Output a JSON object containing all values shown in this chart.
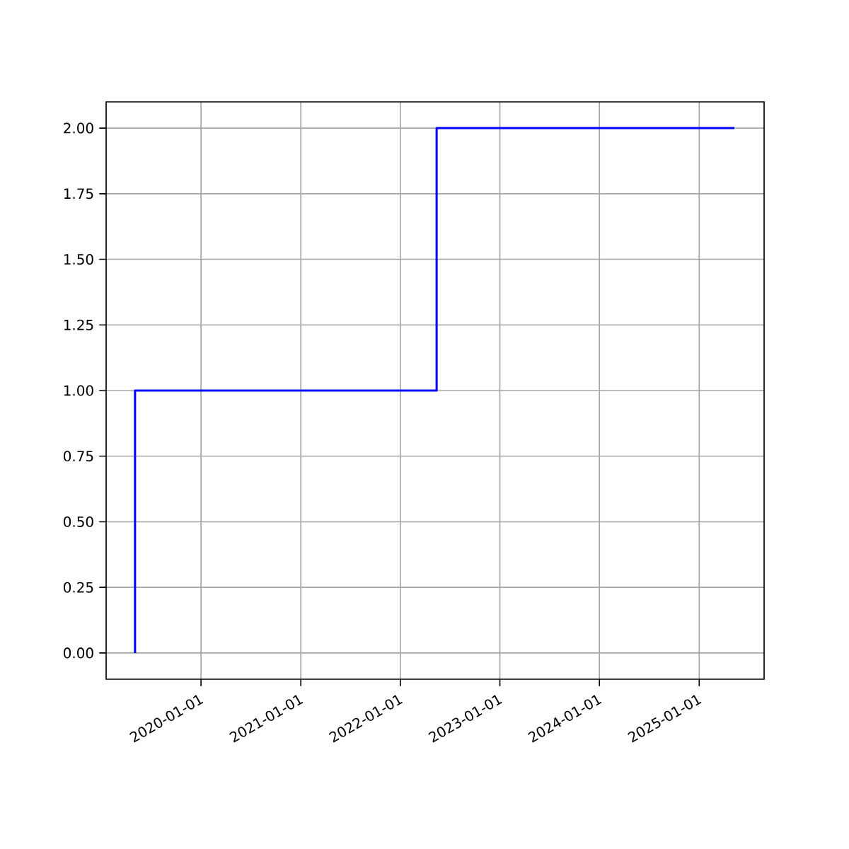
{
  "chart_data": {
    "type": "step",
    "x": [
      "2019-05-04",
      "2019-05-04",
      "2022-05-14",
      "2025-05-10"
    ],
    "series": [
      {
        "color": "#0000ff",
        "values": [
          0,
          1,
          2,
          2
        ]
      }
    ],
    "xlim": [
      "2019-01-18",
      "2025-08-27"
    ],
    "xticks": [
      "2020-01-01",
      "2021-01-01",
      "2022-01-01",
      "2023-01-01",
      "2024-01-01",
      "2025-01-01"
    ],
    "ylim": [
      -0.1,
      2.1
    ],
    "yticks": [
      {
        "value": 0,
        "label": "0.00"
      },
      {
        "value": 0.25,
        "label": "0.25"
      },
      {
        "value": 0.5,
        "label": "0.50"
      },
      {
        "value": 0.75,
        "label": "0.75"
      },
      {
        "value": 1,
        "label": "1.00"
      },
      {
        "value": 1.25,
        "label": "1.25"
      },
      {
        "value": 1.5,
        "label": "1.50"
      },
      {
        "value": 1.75,
        "label": "1.75"
      },
      {
        "value": 2,
        "label": "2.00"
      }
    ],
    "grid": true
  }
}
